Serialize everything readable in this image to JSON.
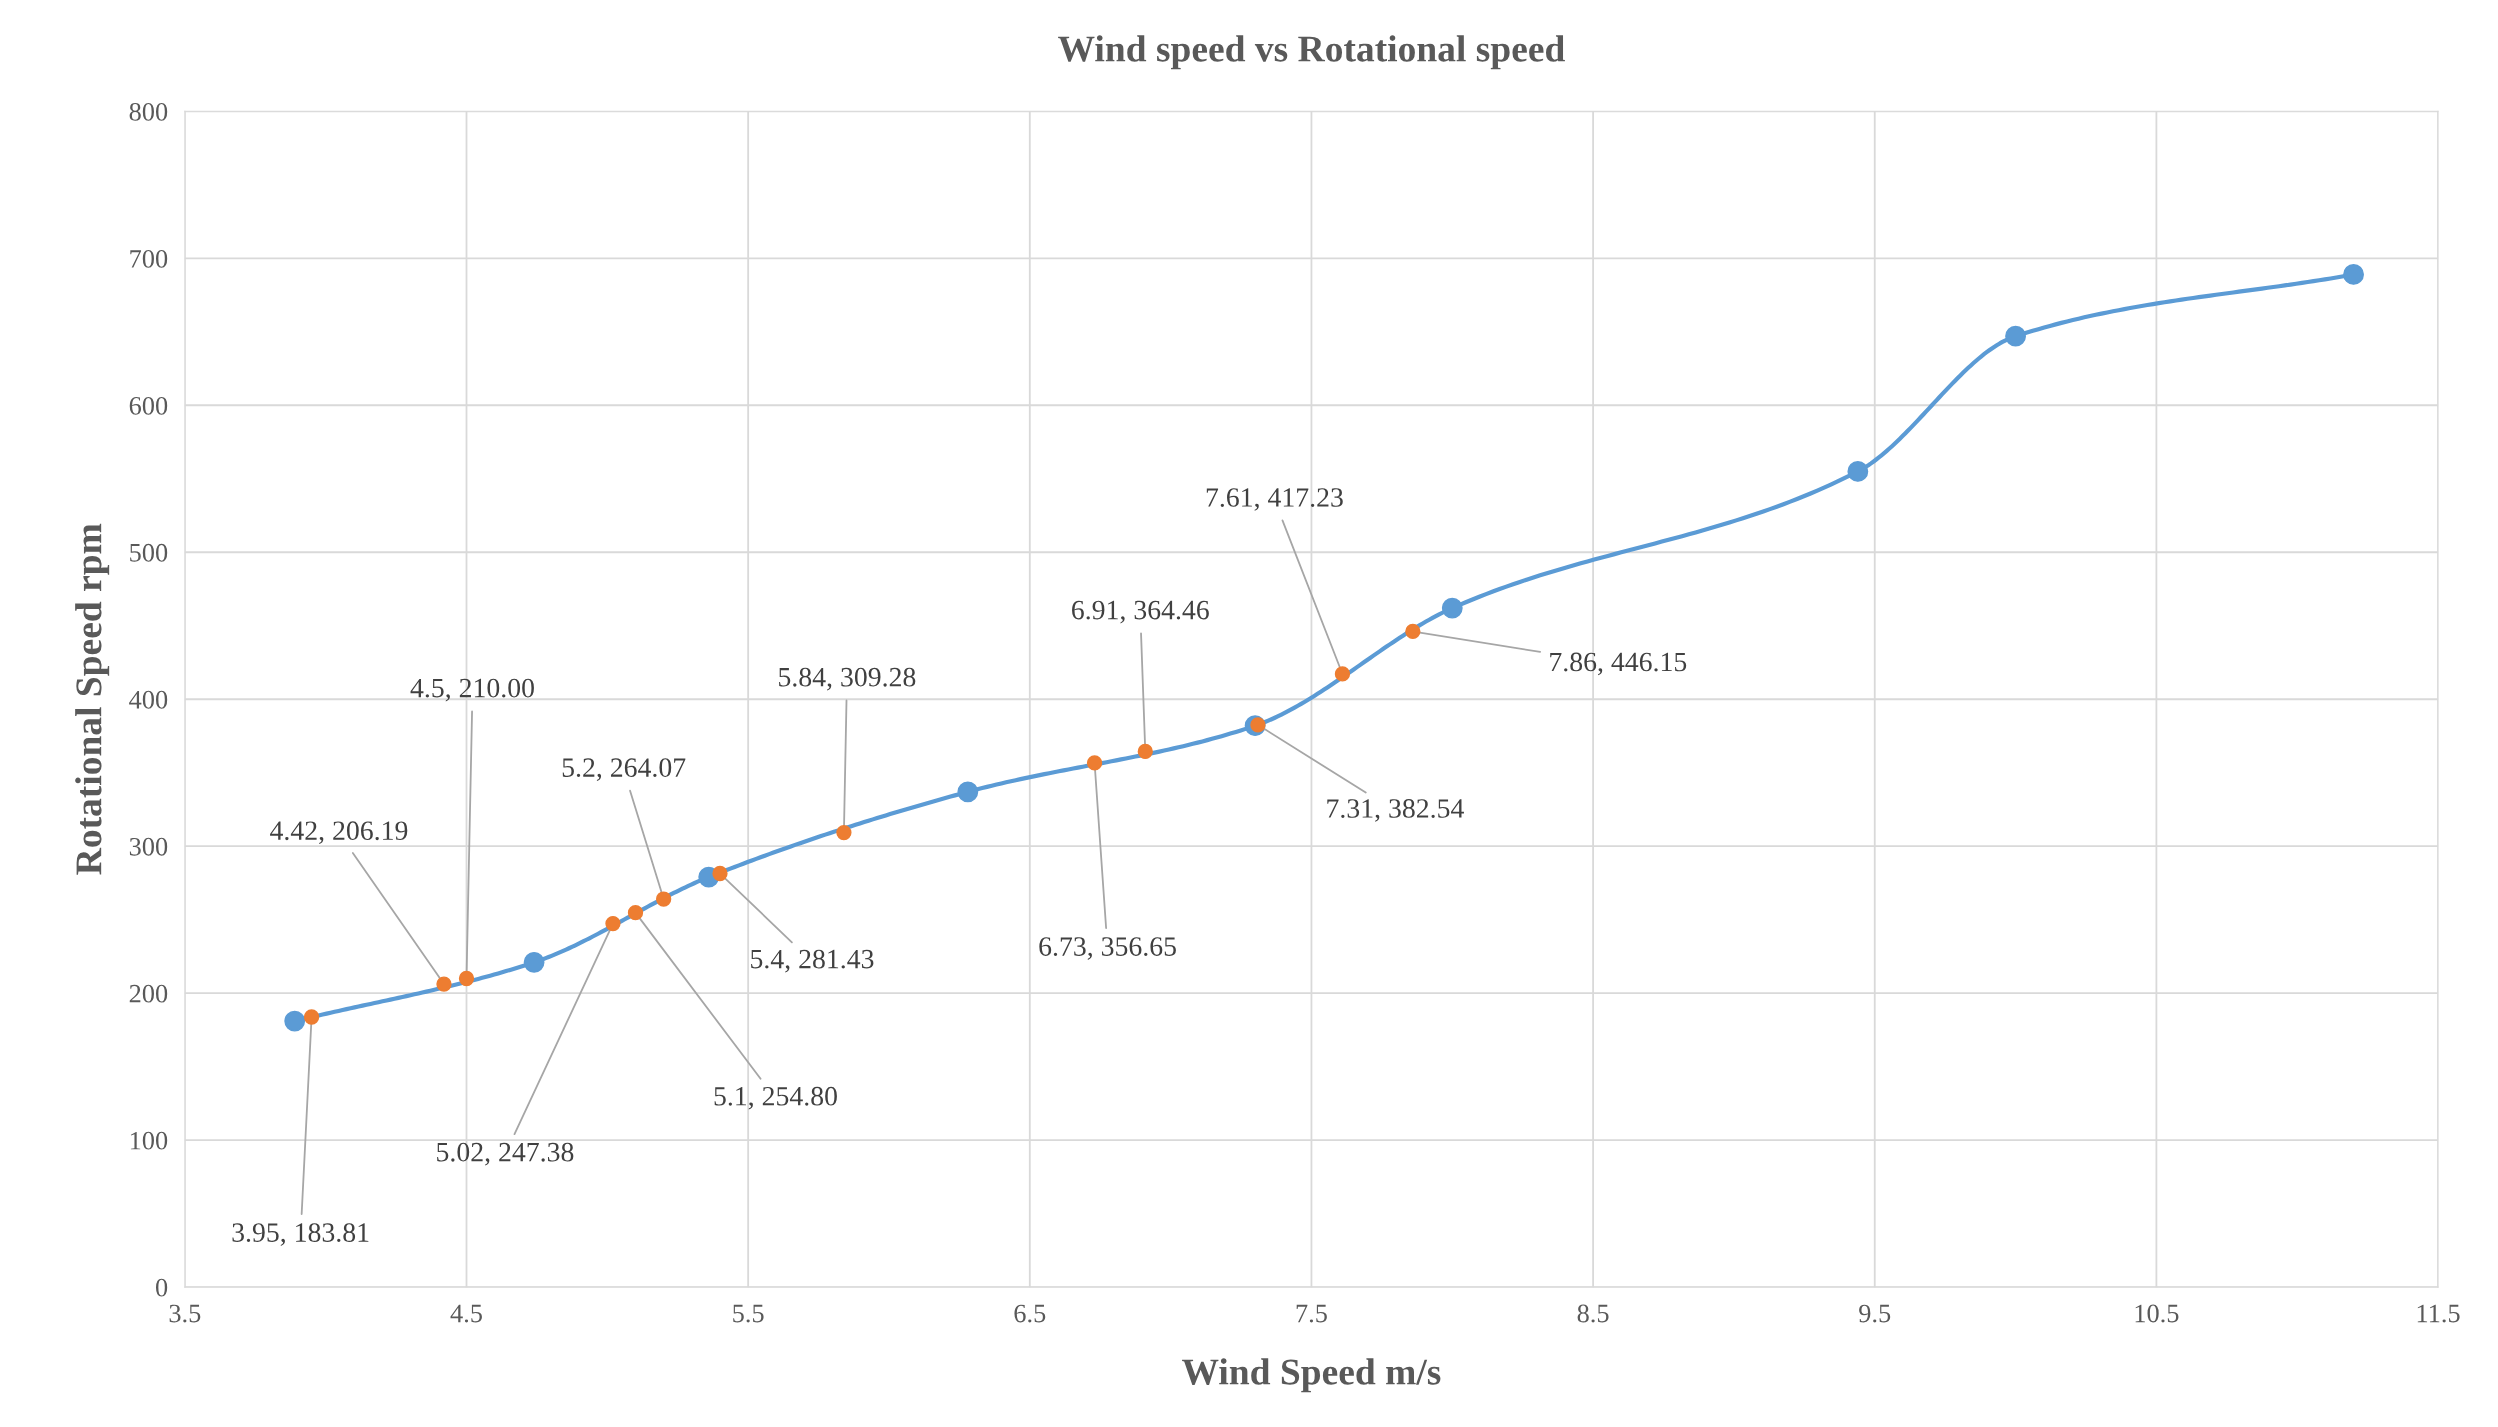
{
  "chart_data": {
    "type": "line",
    "title": "Wind speed vs Rotational speed",
    "xlabel": "Wind Speed m/s",
    "ylabel": "Rotational Speed rpm",
    "xlim": [
      3.5,
      11.5
    ],
    "xticks": [
      3.5,
      4.5,
      5.5,
      6.5,
      7.5,
      8.5,
      9.5,
      10.5,
      11.5
    ],
    "ylim": [
      0,
      800
    ],
    "yticks": [
      0,
      100,
      200,
      300,
      400,
      500,
      600,
      700,
      800
    ],
    "grid": true,
    "legend": false,
    "marker": "circle",
    "line_style": "solid",
    "series": [
      {
        "color": "#5b9bd5",
        "x": [
          3.89,
          4.74,
          5.36,
          6.28,
          7.3,
          8.0,
          9.44,
          10.0,
          11.2
        ],
        "values": [
          181,
          221,
          279,
          337,
          382,
          462,
          555,
          647,
          689
        ]
      },
      {
        "type": "scatter",
        "color": "#ed7d31",
        "x": [
          3.95,
          4.42,
          4.5,
          5.02,
          5.1,
          5.2,
          5.4,
          5.84,
          6.73,
          6.91,
          7.31,
          7.61,
          7.86
        ],
        "values": [
          183.81,
          206.19,
          210.0,
          247.38,
          254.8,
          264.07,
          281.43,
          309.28,
          356.65,
          364.46,
          382.54,
          417.23,
          446.15
        ],
        "value_labels": [
          "3.95, 183.81",
          "4.42, 206.19",
          "4.5, 210.00",
          "5.02, 247.38",
          "5.1, 254.80",
          "5.2, 264.07",
          "5.4, 281.43",
          "5.84, 309.28",
          "6.73, 356.65",
          "6.91, 364.46",
          "7.31, 382.54",
          "7.61, 417.23",
          "7.86, 446.15"
        ]
      }
    ]
  }
}
